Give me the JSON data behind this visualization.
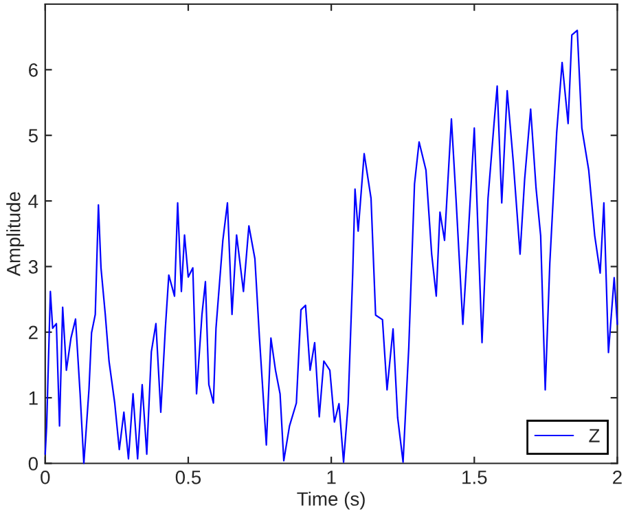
{
  "chart_data": {
    "type": "line",
    "xlabel": "Time (s)",
    "ylabel": "Amplitude",
    "xlim": [
      0,
      2
    ],
    "ylim": [
      0,
      7
    ],
    "xticks": [
      0,
      0.5,
      1,
      1.5,
      2
    ],
    "yticks": [
      0,
      1,
      2,
      3,
      4,
      5,
      6
    ],
    "legend": "bottom right",
    "grid": false,
    "marker": "none",
    "line_style": "solid",
    "series": [
      {
        "name": "Z",
        "color": "#0000ff",
        "x": [
          0,
          0.005,
          0.018,
          0.026,
          0.039,
          0.05,
          0.061,
          0.074,
          0.09,
          0.106,
          0.122,
          0.135,
          0.143,
          0.153,
          0.162,
          0.175,
          0.186,
          0.195,
          0.21,
          0.223,
          0.243,
          0.259,
          0.275,
          0.291,
          0.307,
          0.323,
          0.339,
          0.355,
          0.371,
          0.387,
          0.404,
          0.42,
          0.432,
          0.452,
          0.463,
          0.476,
          0.487,
          0.5,
          0.516,
          0.529,
          0.548,
          0.56,
          0.572,
          0.588,
          0.597,
          0.621,
          0.637,
          0.653,
          0.669,
          0.693,
          0.712,
          0.733,
          0.749,
          0.773,
          0.789,
          0.805,
          0.821,
          0.834,
          0.854,
          0.878,
          0.894,
          0.91,
          0.926,
          0.942,
          0.958,
          0.974,
          0.995,
          1.011,
          1.027,
          1.043,
          1.059,
          1.075,
          1.083,
          1.094,
          1.115,
          1.139,
          1.155,
          1.179,
          1.195,
          1.216,
          1.232,
          1.251,
          1.271,
          1.291,
          1.307,
          1.331,
          1.351,
          1.367,
          1.38,
          1.396,
          1.42,
          1.436,
          1.46,
          1.476,
          1.5,
          1.527,
          1.548,
          1.569,
          1.58,
          1.596,
          1.615,
          1.636,
          1.66,
          1.676,
          1.697,
          1.716,
          1.732,
          1.748,
          1.764,
          1.788,
          1.807,
          1.828,
          1.841,
          1.86,
          1.876,
          1.9,
          1.921,
          1.94,
          1.953,
          1.969,
          1.989,
          2.0
        ],
        "values": [
          0.14,
          0.57,
          2.62,
          2.06,
          2.13,
          0.57,
          2.38,
          1.42,
          1.91,
          2.2,
          1.06,
          0,
          0.5,
          1.13,
          1.99,
          2.27,
          3.94,
          2.98,
          2.27,
          1.56,
          0.92,
          0.21,
          0.78,
          0.07,
          1.06,
          0.07,
          1.2,
          0.14,
          1.7,
          2.13,
          0.78,
          2.06,
          2.87,
          2.55,
          3.97,
          2.62,
          3.48,
          2.84,
          2.98,
          1.06,
          2.27,
          2.77,
          1.2,
          0.92,
          2.06,
          3.4,
          3.97,
          2.27,
          3.48,
          2.62,
          3.62,
          3.12,
          1.91,
          0.28,
          1.91,
          1.42,
          1.06,
          0.04,
          0.57,
          0.92,
          2.34,
          2.41,
          1.42,
          1.84,
          0.71,
          1.56,
          1.42,
          0.63,
          0.91,
          0.02,
          0.91,
          2.9,
          4.18,
          3.54,
          4.72,
          4.04,
          2.26,
          2.19,
          1.12,
          2.05,
          0.7,
          0.02,
          1.77,
          4.26,
          4.9,
          4.47,
          3.19,
          2.55,
          3.83,
          3.4,
          5.25,
          4.04,
          2.12,
          3.26,
          5.11,
          1.84,
          4.04,
          5.18,
          5.75,
          3.97,
          5.68,
          4.61,
          3.19,
          4.33,
          5.4,
          4.19,
          3.47,
          1.12,
          3.05,
          5.04,
          6.11,
          5.18,
          6.53,
          6.6,
          5.11,
          4.47,
          3.47,
          2.9,
          3.97,
          1.69,
          2.83,
          2.12
        ]
      }
    ]
  }
}
